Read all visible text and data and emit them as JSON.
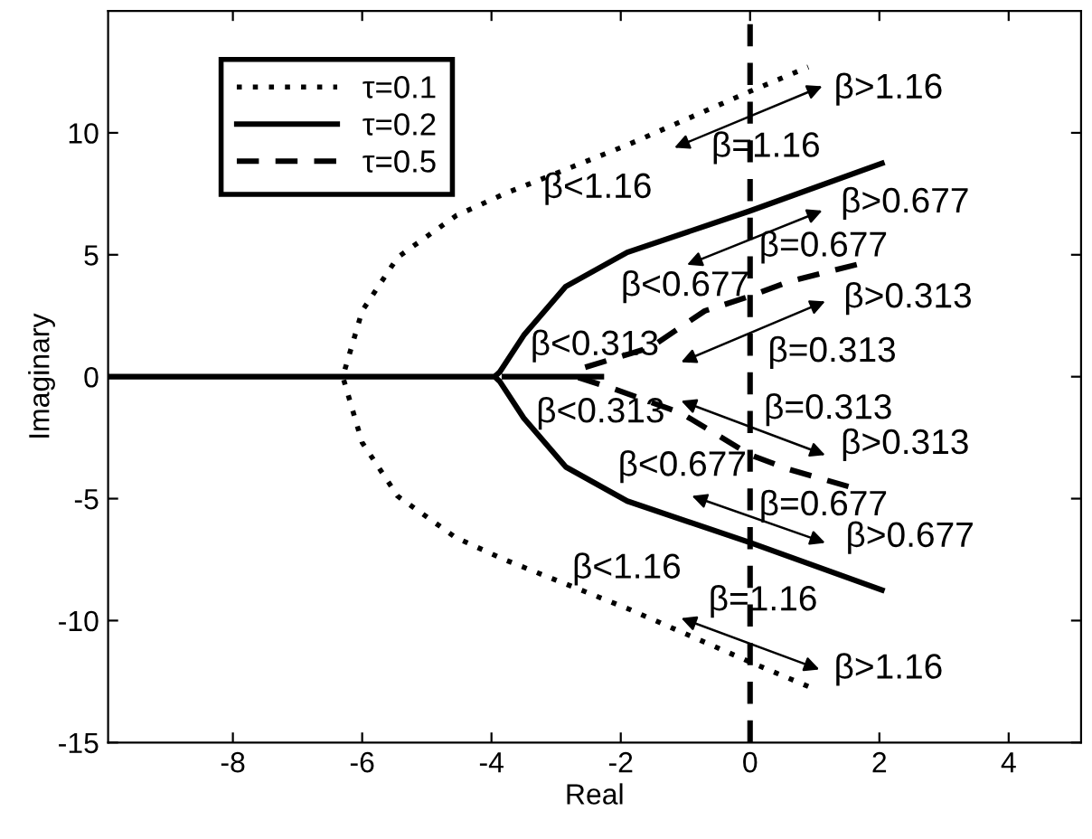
{
  "chart_data": {
    "type": "line",
    "xlabel": "Real",
    "ylabel": "Imaginary",
    "xlim": [
      -9.93,
      5.12
    ],
    "ylim": [
      -15,
      15
    ],
    "xticks": [
      -8,
      -6,
      -4,
      -2,
      0,
      2,
      4
    ],
    "yticks": [
      -15,
      -10,
      -5,
      0,
      5,
      10
    ],
    "legend": "top left",
    "grid": false,
    "series": [
      {
        "name": "τ=0.1",
        "color": "#000000",
        "line_style": "dotted",
        "x": [
          0.9,
          0,
          -1.9,
          -3.8,
          -4.55,
          -5.45,
          -6.0,
          -6.3,
          -6.0,
          -5.45,
          -4.55,
          -3.8,
          -1.9,
          0,
          0.9
        ],
        "values": [
          -12.7,
          -11.7,
          -9.5,
          -7.5,
          -6.6,
          -4.9,
          -2.7,
          0,
          2.7,
          4.9,
          6.6,
          7.5,
          9.5,
          11.7,
          12.7
        ]
      },
      {
        "name": "τ=0.2",
        "color": "#000000",
        "line_style": "solid",
        "x": [
          -9.93,
          -3.95,
          -3.87,
          -3.5,
          -2.85,
          -1.9,
          0,
          2.04,
          null,
          -3.95,
          -3.87,
          -3.5,
          -2.85,
          -1.9,
          0,
          2.04,
          null,
          -3.8,
          -2.3
        ],
        "values": [
          0,
          0,
          0.2,
          1.7,
          3.7,
          5.1,
          6.8,
          8.75,
          null,
          0,
          -0.2,
          -1.7,
          -3.7,
          -5.1,
          -6.8,
          -8.75,
          null,
          0,
          0
        ]
      },
      {
        "name": "τ=0.5",
        "color": "#000000",
        "line_style": "dashed",
        "x": [
          1.65,
          0.6,
          0,
          -0.7,
          -1.54,
          -2.57,
          -2.7,
          -2.1,
          -1.06,
          0,
          0.6,
          1.65
        ],
        "values": [
          4.6,
          3.9,
          3.3,
          2.7,
          1.2,
          0.37,
          0,
          -0.5,
          -1.5,
          -3.2,
          -3.8,
          -4.6
        ]
      }
    ],
    "ref_lines": [
      {
        "axis": "x",
        "value": 0,
        "color": "#000000",
        "line_style": "dashed"
      }
    ],
    "annotations": [
      "β>1.16",
      "β=1.16",
      "β<1.16",
      "β>0.677",
      "β=0.677",
      "β<0.677",
      "β>0.313",
      "β=0.313",
      "β<0.313",
      "β<0.313",
      "β=0.313",
      "β>0.313",
      "β<0.677",
      "β=0.677",
      "β>0.677",
      "β<1.16",
      "β=1.16",
      "β>1.16"
    ]
  }
}
